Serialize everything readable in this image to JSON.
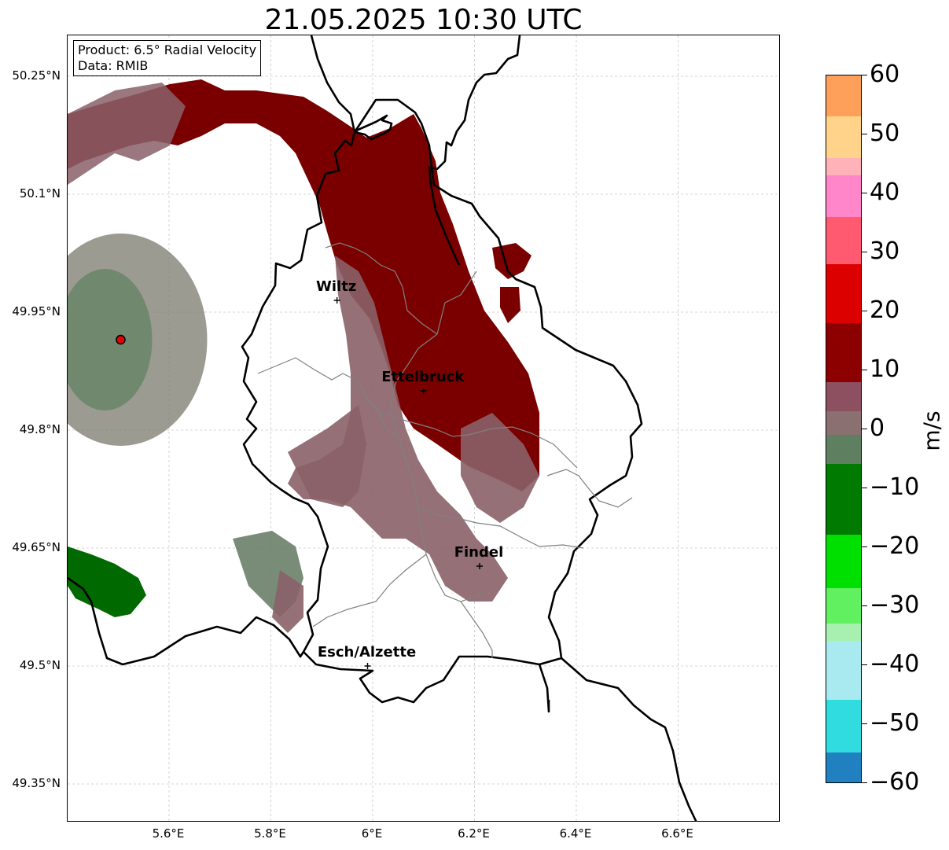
{
  "title": "21.05.2025 10:30 UTC",
  "info": {
    "product": "Product: 6.5° Radial Velocity",
    "data": "Data: RMIB"
  },
  "axes": {
    "lat_ticks": [
      "50.25°N",
      "50.1°N",
      "49.95°N",
      "49.8°N",
      "49.65°N",
      "49.5°N",
      "49.35°N"
    ],
    "lon_ticks": [
      "5.6°E",
      "5.8°E",
      "6°E",
      "6.2°E",
      "6.4°E",
      "6.6°E"
    ]
  },
  "cities": [
    {
      "name": "Wiltz",
      "lat": 49.965,
      "lon": 5.93
    },
    {
      "name": "Ettelbruck",
      "lat": 49.85,
      "lon": 6.1
    },
    {
      "name": "Findel",
      "lat": 49.627,
      "lon": 6.21
    },
    {
      "name": "Esch/Alzette",
      "lat": 49.5,
      "lon": 5.99
    }
  ],
  "radar_site": {
    "lat": 49.915,
    "lon": 5.505
  },
  "colorbar": {
    "unit": "m/s",
    "min": -60,
    "max": 60,
    "ticks": [
      "60",
      "50",
      "40",
      "30",
      "20",
      "10",
      "0",
      "−10",
      "−20",
      "−30",
      "−40",
      "−50",
      "−60"
    ],
    "stops": [
      {
        "from": 53,
        "to": 60,
        "color": "#ffa05a"
      },
      {
        "from": 46,
        "to": 53,
        "color": "#ffd38a"
      },
      {
        "from": 43,
        "to": 46,
        "color": "#ffb3b8"
      },
      {
        "from": 36,
        "to": 43,
        "color": "#ff86c8"
      },
      {
        "from": 28,
        "to": 36,
        "color": "#ff5a70"
      },
      {
        "from": 18,
        "to": 28,
        "color": "#dc0000"
      },
      {
        "from": 8,
        "to": 18,
        "color": "#8c0000"
      },
      {
        "from": 3,
        "to": 8,
        "color": "#8c5060"
      },
      {
        "from": -1,
        "to": 3,
        "color": "#8a7070"
      },
      {
        "from": -6,
        "to": -1,
        "color": "#5e8060"
      },
      {
        "from": -18,
        "to": -6,
        "color": "#007a00"
      },
      {
        "from": -27,
        "to": -18,
        "color": "#00e000"
      },
      {
        "from": -33,
        "to": -27,
        "color": "#60f060"
      },
      {
        "from": -36,
        "to": -33,
        "color": "#a8f0b0"
      },
      {
        "from": -46,
        "to": -36,
        "color": "#a8eaf0"
      },
      {
        "from": -55,
        "to": -46,
        "color": "#30dce0"
      },
      {
        "from": -60,
        "to": -55,
        "color": "#2080c0"
      }
    ]
  },
  "colors": {
    "inbound_strong": "#7a0000",
    "near_zero": "#8a6068",
    "outbound": "#006a00",
    "border": "#000000",
    "canton": "#808080"
  }
}
